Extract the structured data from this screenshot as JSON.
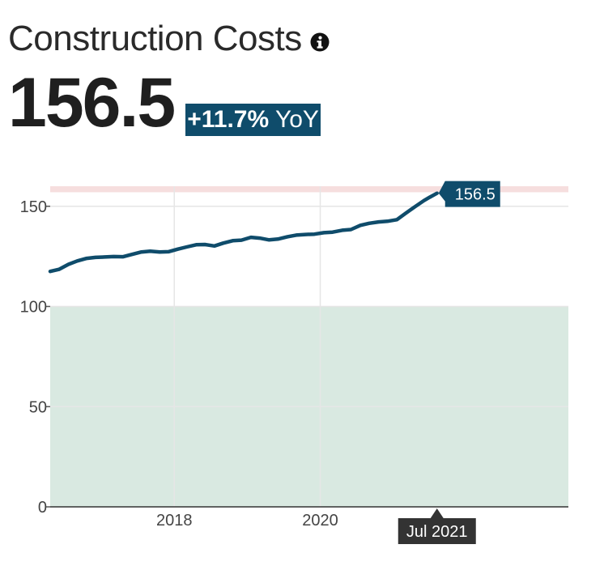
{
  "header": {
    "title": "Construction Costs",
    "value": "156.5",
    "change": "+11.7%",
    "change_suffix": " YoY"
  },
  "tooltip": {
    "date": "Jul 2021",
    "value": "156.5"
  },
  "colors": {
    "line": "#0f4c6b",
    "badge": "#0f4c6b",
    "safe_zone": "#d9e9e1",
    "high_band": "#f6dede",
    "grid": "#e6e6e6",
    "tooltip": "#333333"
  },
  "chart_data": {
    "type": "line",
    "title": "Construction Costs",
    "xlabel": "",
    "ylabel": "",
    "x_range": [
      2016.3,
      2023.4
    ],
    "ylim": [
      0,
      160
    ],
    "x_ticks": [
      2018,
      2020
    ],
    "y_ticks": [
      0,
      50,
      100,
      150
    ],
    "grid": true,
    "bands": [
      {
        "from": 0,
        "to": 100,
        "color": "#d9e9e1"
      },
      {
        "from": 157,
        "to": 160,
        "color": "#f6dede"
      }
    ],
    "series": [
      {
        "x": [
          2016.3,
          2016.42,
          2016.55,
          2016.67,
          2016.8,
          2016.92,
          2017.05,
          2017.17,
          2017.3,
          2017.42,
          2017.55,
          2017.67,
          2017.8,
          2017.92,
          2018.05,
          2018.17,
          2018.3,
          2018.42,
          2018.55,
          2018.67,
          2018.8,
          2018.92,
          2019.05,
          2019.17,
          2019.3,
          2019.42,
          2019.55,
          2019.67,
          2019.8,
          2019.92,
          2020.05,
          2020.17,
          2020.3,
          2020.42,
          2020.55,
          2020.67,
          2020.8,
          2020.92,
          2021.05,
          2021.17,
          2021.3,
          2021.42,
          2021.5,
          2021.6
        ],
        "values": [
          117.5,
          118.5,
          121.0,
          122.7,
          124.0,
          124.5,
          124.7,
          124.9,
          124.8,
          126.0,
          127.2,
          127.6,
          127.2,
          127.3,
          128.6,
          129.7,
          130.8,
          130.9,
          130.2,
          131.6,
          132.8,
          133.1,
          134.5,
          134.1,
          133.2,
          133.6,
          134.8,
          135.6,
          135.9,
          136.1,
          136.8,
          137.1,
          138.0,
          138.4,
          140.5,
          141.5,
          142.2,
          142.5,
          143.3,
          146.5,
          149.8,
          152.8,
          154.5,
          156.5
        ]
      }
    ]
  }
}
